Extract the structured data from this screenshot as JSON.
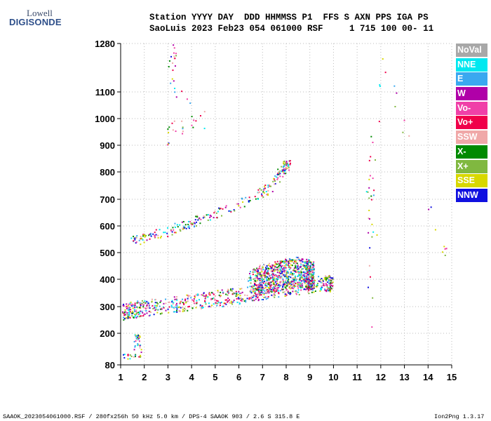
{
  "logo": {
    "line1": "Lowell",
    "line2": "DIGISONDE"
  },
  "header": {
    "line1": "Station YYYY DAY  DDD HHMMSS P1  FFS S AXN PPS IGA PS",
    "line2": "SaoLuis 2023 Feb23 054 061000 RSF     1 715 100 00- 11"
  },
  "legend": [
    {
      "label": "NoVal",
      "color": "#a8a8a8"
    },
    {
      "label": "NNE",
      "color": "#00e8f0"
    },
    {
      "label": "E",
      "color": "#3aa8f0"
    },
    {
      "label": "W",
      "color": "#b000a8"
    },
    {
      "label": "Vo-",
      "color": "#f040a8"
    },
    {
      "label": "Vo+",
      "color": "#f0004a"
    },
    {
      "label": "SSW",
      "color": "#f0a8a8"
    },
    {
      "label": "X-",
      "color": "#008a00"
    },
    {
      "label": "X+",
      "color": "#80b840"
    },
    {
      "label": "SSE",
      "color": "#d8d800"
    },
    {
      "label": "NNW",
      "color": "#1010e0"
    }
  ],
  "footer": {
    "left": "SAAOK_2023054061000.RSF / 280fx256h 50 kHz 5.0 km / DPS-4 SAAOK 903 / 2.6 S 315.8 E",
    "right": "Ion2Png 1.3.17"
  },
  "chart_data": {
    "type": "scatter",
    "xlim": [
      1,
      15
    ],
    "ylim": [
      80,
      1280
    ],
    "x_ticks": [
      1,
      2,
      3,
      4,
      5,
      6,
      7,
      8,
      9,
      10,
      11,
      12,
      13,
      14,
      15
    ],
    "y_ticks": [
      80,
      200,
      300,
      400,
      500,
      600,
      700,
      800,
      900,
      1000,
      1100,
      1280
    ],
    "clusters": [
      {
        "name": "F-trace lower",
        "points": [
          [
            1.0,
            270
          ],
          [
            1.5,
            278
          ],
          [
            2.0,
            285
          ],
          [
            3.0,
            295
          ],
          [
            4.0,
            305
          ],
          [
            5.0,
            318
          ],
          [
            6.0,
            330
          ],
          [
            7.0,
            345
          ],
          [
            8.0,
            360
          ],
          [
            9.0,
            370
          ],
          [
            9.8,
            375
          ]
        ],
        "spread": 60
      },
      {
        "name": "F dense blob",
        "points": [
          [
            6.5,
            360
          ],
          [
            7.0,
            380
          ],
          [
            7.5,
            390
          ],
          [
            8.0,
            400
          ],
          [
            8.5,
            410
          ],
          [
            9.0,
            395
          ]
        ],
        "spread": 110
      },
      {
        "name": "multi-hop trace",
        "points": [
          [
            1.5,
            535
          ],
          [
            2.0,
            555
          ],
          [
            3.0,
            575
          ],
          [
            4.0,
            610
          ],
          [
            5.0,
            640
          ],
          [
            6.0,
            680
          ],
          [
            7.0,
            720
          ],
          [
            7.5,
            760
          ],
          [
            8.0,
            820
          ]
        ],
        "spread": 35
      },
      {
        "name": "upper scatter",
        "points": [
          [
            3.0,
            900
          ],
          [
            3.2,
            950
          ],
          [
            4.5,
            980
          ],
          [
            3.1,
            1120
          ],
          [
            3.2,
            1250
          ]
        ],
        "spread": 60
      },
      {
        "name": "E-region",
        "points": [
          [
            1.1,
            110
          ],
          [
            1.7,
            110
          ],
          [
            1.7,
            185
          ]
        ],
        "spread": 20
      },
      {
        "name": "right isolated",
        "points": [
          [
            11.4,
            830
          ],
          [
            11.6,
            500
          ],
          [
            11.6,
            920
          ],
          [
            11.5,
            230
          ],
          [
            12.0,
            1230
          ],
          [
            14.7,
            500
          ]
        ],
        "spread": 40
      }
    ]
  }
}
